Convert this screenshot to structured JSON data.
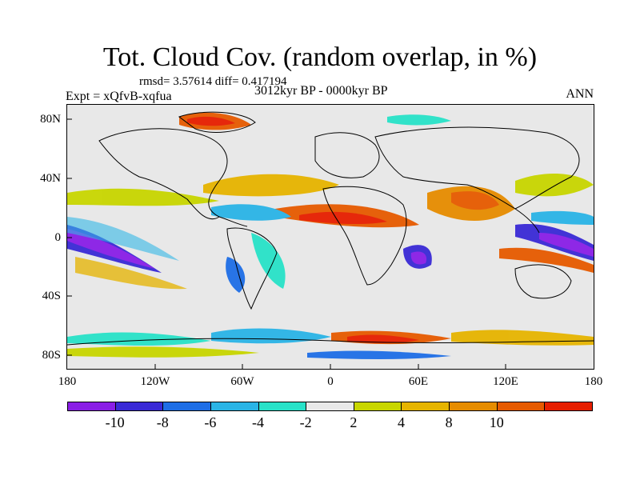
{
  "title": "Tot. Cloud Cov. (random overlap, in %)",
  "stats": "rmsd= 3.57614 diff= 0.417194",
  "left_subtitle": "Expt = xQfvB-xqfua",
  "center_subtitle": "3012kyr BP - 0000kyr BP",
  "right_subtitle": "ANN",
  "y_ticks": [
    "80N",
    "40N",
    "0",
    "40S",
    "80S"
  ],
  "x_ticks": [
    "180",
    "120W",
    "60W",
    "0",
    "60E",
    "120E",
    "180"
  ],
  "colorbar": {
    "colors": [
      "#8a1ee6",
      "#3a2ad6",
      "#1e6ee6",
      "#2ab4e6",
      "#28e2c8",
      "#e8e8e8",
      "#c8d600",
      "#e6b400",
      "#e68c00",
      "#e65a00",
      "#e61e00"
    ],
    "labels": [
      "-10",
      "-8",
      "-6",
      "-4",
      "-2",
      "2",
      "4",
      "8",
      "10"
    ]
  }
}
